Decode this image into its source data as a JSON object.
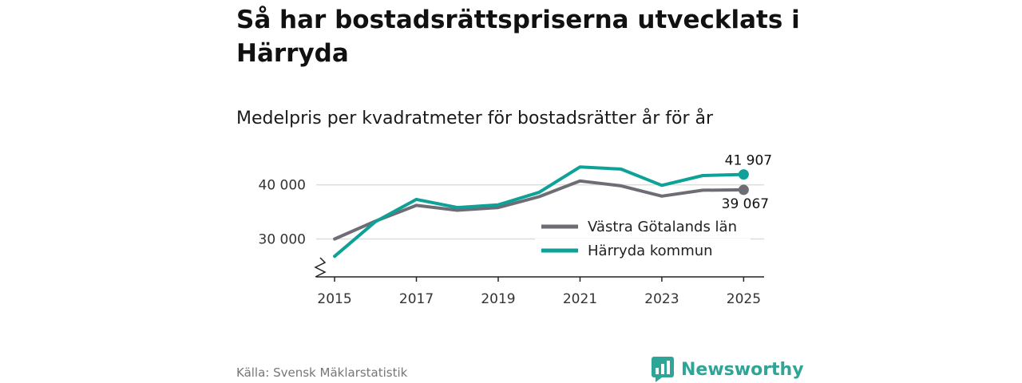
{
  "header": {
    "title": "Så har bostadsrättspriserna utvecklats i Härryda",
    "subtitle": "Medelpris per kvadratmeter för bostadsrätter år för år"
  },
  "footer": {
    "source": "Källa: Svensk Mäklarstatistik",
    "brand": "Newsworthy"
  },
  "colors": {
    "harryda": "#0ea197",
    "vastra": "#6e6d75",
    "grid": "#dddddd",
    "axis": "#222222"
  },
  "chart_data": {
    "type": "line",
    "title": "Så har bostadsrättspriserna utvecklats i Härryda",
    "subtitle": "Medelpris per kvadratmeter för bostadsrätter år för år",
    "x": [
      2015,
      2016,
      2017,
      2018,
      2019,
      2020,
      2021,
      2022,
      2023,
      2024,
      2025
    ],
    "xlim": [
      2014.55,
      2025.5
    ],
    "ylim": [
      23000,
      42000
    ],
    "y_ticks": [
      30000,
      40000
    ],
    "y_tick_labels": [
      "30 000",
      "40 000"
    ],
    "x_ticks": [
      2015,
      2017,
      2019,
      2021,
      2023,
      2025
    ],
    "x_tick_labels": [
      "2015",
      "2017",
      "2019",
      "2021",
      "2023",
      "2025"
    ],
    "y_axis_break": true,
    "legend_position": "center-right",
    "series": [
      {
        "key": "vastra",
        "name": "Västra Götalands län",
        "values": [
          30000,
          33300,
          36200,
          35300,
          35800,
          37800,
          40700,
          39800,
          37900,
          39000,
          39067
        ],
        "end_label": "39 067"
      },
      {
        "key": "harryda",
        "name": "Härryda kommun",
        "values": [
          26800,
          33200,
          37300,
          35800,
          36300,
          38600,
          43300,
          42900,
          39900,
          41700,
          41907
        ],
        "end_label": "41 907"
      }
    ]
  }
}
